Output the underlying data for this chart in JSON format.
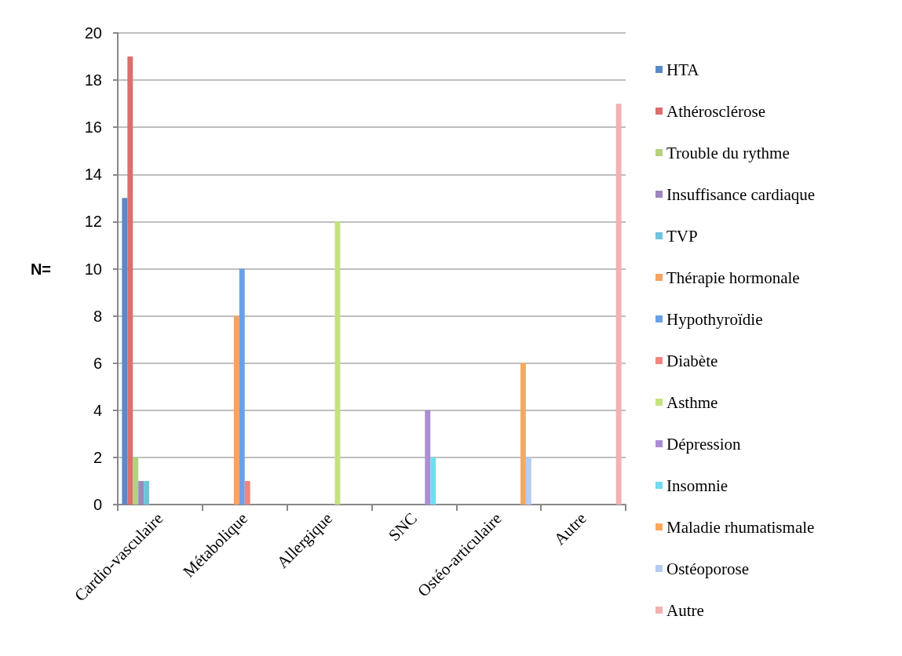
{
  "chart_data": {
    "type": "bar",
    "ylabel": "N=",
    "categories": [
      "Cardio-vasculaire",
      "Métabolique",
      "Allergique",
      "SNC",
      "Ostéo-articulaire",
      "Autre"
    ],
    "series": [
      {
        "name": "HTA",
        "color": "#5b88c8",
        "values": [
          13,
          null,
          null,
          null,
          null,
          null
        ]
      },
      {
        "name": "Athérosclérose",
        "color": "#d9706c",
        "values": [
          19,
          null,
          null,
          null,
          null,
          null
        ]
      },
      {
        "name": "Trouble du rythme",
        "color": "#b5d07f",
        "values": [
          2,
          null,
          null,
          null,
          null,
          null
        ]
      },
      {
        "name": "Insuffisance cardiaque",
        "color": "#9c88bd",
        "values": [
          1,
          null,
          null,
          null,
          null,
          null
        ]
      },
      {
        "name": "TVP",
        "color": "#6fc3dc",
        "values": [
          1,
          null,
          null,
          null,
          null,
          null
        ]
      },
      {
        "name": "Thérapie hormonale",
        "color": "#f4a364",
        "values": [
          null,
          8,
          null,
          null,
          null,
          null
        ]
      },
      {
        "name": "Hypothyroïdie",
        "color": "#6ba0e6",
        "values": [
          null,
          10,
          null,
          null,
          null,
          null
        ]
      },
      {
        "name": "Diabète",
        "color": "#f08480",
        "values": [
          null,
          1,
          null,
          null,
          null,
          null
        ]
      },
      {
        "name": "Asthme",
        "color": "#c4e27e",
        "values": [
          null,
          null,
          12,
          null,
          null,
          null
        ]
      },
      {
        "name": "Dépression",
        "color": "#a98fd2",
        "values": [
          null,
          null,
          null,
          4,
          null,
          null
        ]
      },
      {
        "name": "Insomnie",
        "color": "#6fdcf0",
        "values": [
          null,
          null,
          null,
          2,
          null,
          null
        ]
      },
      {
        "name": "Maladie rhumatismale",
        "color": "#fca85a",
        "values": [
          null,
          null,
          null,
          null,
          6,
          null
        ]
      },
      {
        "name": "Ostéoporose",
        "color": "#b4cdf0",
        "values": [
          null,
          null,
          null,
          null,
          2,
          null
        ]
      },
      {
        "name": "Autre",
        "color": "#f0b2b2",
        "values": [
          null,
          null,
          null,
          null,
          null,
          17
        ]
      }
    ],
    "ylim": [
      0,
      20
    ],
    "yticks": [
      0,
      2,
      4,
      6,
      8,
      10,
      12,
      14,
      16,
      18,
      20
    ],
    "grid": "y",
    "legend": "right"
  }
}
